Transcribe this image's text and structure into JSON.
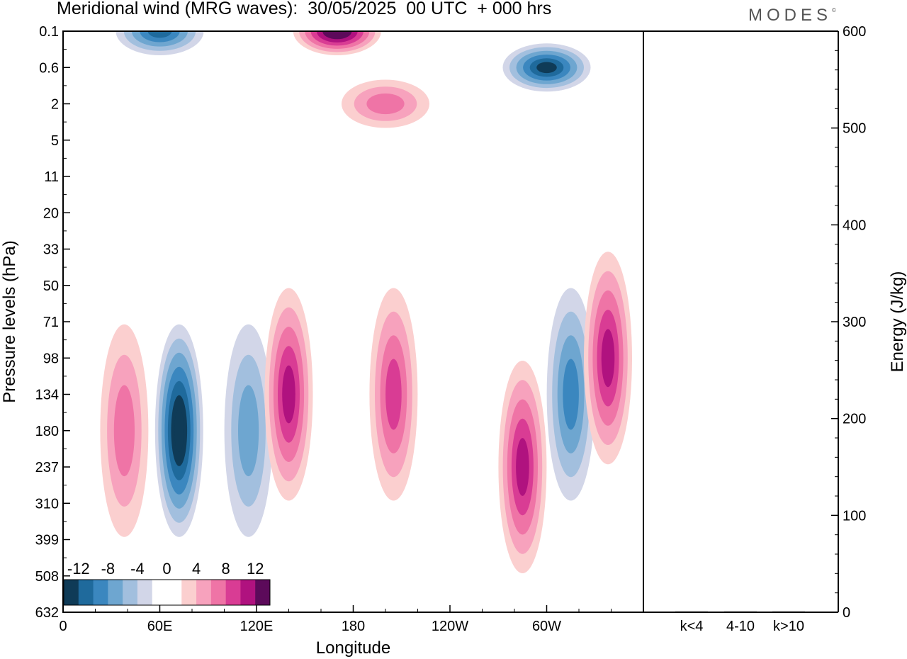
{
  "title": "Meridional wind (MRG waves):  30/05/2025  00 UTC  + 000 hrs",
  "brand": "MODES",
  "brand_mark": "©",
  "chart_data": [
    {
      "type": "heatmap",
      "title": "Meridional wind (MRG waves):  30/05/2025  00 UTC  + 000 hrs",
      "xlabel": "Longitude",
      "ylabel": "Pressure levels (hPa)",
      "x_ticks": [
        "0",
        "60E",
        "120E",
        "180",
        "120W",
        "60W"
      ],
      "x_tick_values": [
        0,
        60,
        120,
        180,
        240,
        300
      ],
      "xlim": [
        0,
        360
      ],
      "y_ticks": [
        "0.1",
        "0.6",
        "2",
        "5",
        "11",
        "20",
        "33",
        "50",
        "71",
        "98",
        "134",
        "180",
        "237",
        "310",
        "399",
        "508",
        "632"
      ],
      "y_axis_top_to_bottom": true,
      "colorbar": {
        "labels": [
          "-12",
          "-8",
          "-4",
          "0",
          "4",
          "8",
          "12"
        ],
        "colors": [
          "#0f3b57",
          "#1f6a9c",
          "#3b87bf",
          "#6ea6d0",
          "#a2bfde",
          "#d2d6e8",
          "#ffffff",
          "#ffffff",
          "#fbcfcf",
          "#f7a2bd",
          "#ef74a6",
          "#d93c94",
          "#b0127f",
          "#5c0a5a"
        ]
      },
      "features": [
        {
          "lon": 72,
          "level": "180",
          "sign": "negative",
          "peak": -14
        },
        {
          "lon": 115,
          "level": "180",
          "sign": "negative",
          "peak": -7
        },
        {
          "lon": 140,
          "level": "134",
          "sign": "positive",
          "peak": 10
        },
        {
          "lon": 38,
          "level": "180",
          "sign": "positive",
          "peak": 7
        },
        {
          "lon": 205,
          "level": "134",
          "sign": "positive",
          "peak": 9
        },
        {
          "lon": 285,
          "level": "237",
          "sign": "positive",
          "peak": 11
        },
        {
          "lon": 315,
          "level": "134",
          "sign": "negative",
          "peak": -8
        },
        {
          "lon": 338,
          "level": "98",
          "sign": "positive",
          "peak": 10
        },
        {
          "lon": 170,
          "level": "0.1",
          "sign": "positive",
          "peak": 14
        },
        {
          "lon": 300,
          "level": "0.6",
          "sign": "negative",
          "peak": -12
        },
        {
          "lon": 60,
          "level": "0.1",
          "sign": "negative",
          "peak": -10
        },
        {
          "lon": 200,
          "level": "2",
          "sign": "positive",
          "peak": 7
        }
      ]
    },
    {
      "type": "bar",
      "ylabel": "Energy (J/kg)",
      "ylim": [
        0,
        600
      ],
      "y_ticks": [
        "0",
        "100",
        "200",
        "300",
        "400",
        "500",
        "600"
      ],
      "categories": [
        "k<4",
        "4-10",
        "k>10"
      ],
      "values": [
        0.5,
        1.0,
        0.2
      ]
    }
  ]
}
